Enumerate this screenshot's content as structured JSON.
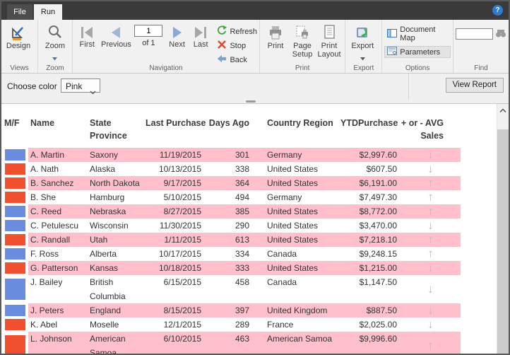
{
  "window": {
    "help_glyph": "?"
  },
  "tabs": {
    "file": "File",
    "run": "Run"
  },
  "ribbon": {
    "design": "Design",
    "zoom": "Zoom",
    "first": "First",
    "previous": "Previous",
    "page_number": "1",
    "page_of": "of 1",
    "next": "Next",
    "last": "Last",
    "refresh": "Refresh",
    "stop": "Stop",
    "back": "Back",
    "print": "Print",
    "page_setup": "Page Setup",
    "print_layout": "Print Layout",
    "export": "Export",
    "document_map": "Document Map",
    "parameters": "Parameters",
    "group_labels": {
      "views": "Views",
      "zoom": "Zoom",
      "navigation": "Navigation",
      "print": "Print",
      "export": "Export",
      "options": "Options",
      "find": "Find"
    }
  },
  "parameter_bar": {
    "label": "Choose color",
    "selected": "Pink",
    "view_report": "View Report"
  },
  "icons": {
    "trend_up": "↑",
    "trend_down": "↓"
  },
  "colors": {
    "swatch_blue": "#6a8cde",
    "swatch_red": "#f0502d",
    "row_highlight": "#ffc0cb"
  },
  "report": {
    "columns": [
      {
        "line1": "M/F"
      },
      {
        "line1": "Name"
      },
      {
        "line1": "State",
        "line2": "Province"
      },
      {
        "line1": "Last Purchase"
      },
      {
        "line1": "Days Ago"
      },
      {
        "line1": "Country Region"
      },
      {
        "line1": "YTDPurchase"
      },
      {
        "line1": "+ or - AVG",
        "line2": "Sales"
      }
    ],
    "rows": [
      {
        "swatch": "blue",
        "name": "A. Martin",
        "state": "Saxony",
        "last_purchase": "11/19/2015",
        "days_ago": "301",
        "country": "Germany",
        "ytd": "$2,997.60",
        "trend": "down",
        "highlight": true,
        "tall": false
      },
      {
        "swatch": "red",
        "name": "A. Nath",
        "state": "Alaska",
        "last_purchase": "10/13/2015",
        "days_ago": "338",
        "country": "United States",
        "ytd": "$607.50",
        "trend": "down",
        "highlight": false,
        "tall": false
      },
      {
        "swatch": "red",
        "name": "B. Sanchez",
        "state": "North Dakota",
        "last_purchase": "9/17/2015",
        "days_ago": "364",
        "country": "United States",
        "ytd": "$6,191.00",
        "trend": "up",
        "highlight": true,
        "tall": false
      },
      {
        "swatch": "red",
        "name": "B. She",
        "state": "Hamburg",
        "last_purchase": "5/10/2015",
        "days_ago": "494",
        "country": "Germany",
        "ytd": "$7,497.30",
        "trend": "up",
        "highlight": false,
        "tall": false
      },
      {
        "swatch": "blue",
        "name": "C. Reed",
        "state": "Nebraska",
        "last_purchase": "8/27/2015",
        "days_ago": "385",
        "country": "United States",
        "ytd": "$8,772.00",
        "trend": "up",
        "highlight": true,
        "tall": false
      },
      {
        "swatch": "blue",
        "name": "C. Petulescu",
        "state": "Wisconsin",
        "last_purchase": "11/30/2015",
        "days_ago": "290",
        "country": "United States",
        "ytd": "$3,470.00",
        "trend": "down",
        "highlight": false,
        "tall": false
      },
      {
        "swatch": "red",
        "name": "C. Randall",
        "state": "Utah",
        "last_purchase": "1/11/2015",
        "days_ago": "613",
        "country": "United States",
        "ytd": "$7,218.10",
        "trend": "up",
        "highlight": true,
        "tall": false
      },
      {
        "swatch": "blue",
        "name": "F. Ross",
        "state": "Alberta",
        "last_purchase": "10/17/2015",
        "days_ago": "334",
        "country": "Canada",
        "ytd": "$9,248.15",
        "trend": "up",
        "highlight": false,
        "tall": false
      },
      {
        "swatch": "red",
        "name": "G. Patterson",
        "state": "Kansas",
        "last_purchase": "10/18/2015",
        "days_ago": "333",
        "country": "United States",
        "ytd": "$1,215.00",
        "trend": "down",
        "highlight": true,
        "tall": false
      },
      {
        "swatch": "blue",
        "name": "J. Bailey",
        "state": "British Columbia",
        "last_purchase": "6/15/2015",
        "days_ago": "458",
        "country": "Canada",
        "ytd": "$1,147.50",
        "trend": "down",
        "highlight": false,
        "tall": true
      },
      {
        "swatch": "blue",
        "name": "J. Peters",
        "state": "England",
        "last_purchase": "8/15/2015",
        "days_ago": "397",
        "country": "United Kingdom",
        "ytd": "$887.50",
        "trend": "down",
        "highlight": true,
        "tall": false
      },
      {
        "swatch": "red",
        "name": "K. Abel",
        "state": "Moselle",
        "last_purchase": "12/1/2015",
        "days_ago": "289",
        "country": "France",
        "ytd": "$2,025.00",
        "trend": "down",
        "highlight": false,
        "tall": false
      },
      {
        "swatch": "red",
        "name": "L. Johnson",
        "state": "American Samoa",
        "last_purchase": "6/10/2015",
        "days_ago": "463",
        "country": "American Samoa",
        "ytd": "$9,996.60",
        "trend": "up",
        "highlight": true,
        "tall": true
      }
    ]
  }
}
